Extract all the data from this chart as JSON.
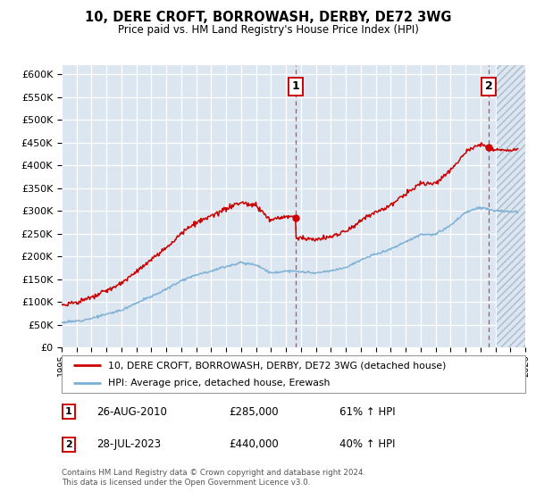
{
  "title": "10, DERE CROFT, BORROWASH, DERBY, DE72 3WG",
  "subtitle": "Price paid vs. HM Land Registry's House Price Index (HPI)",
  "legend_line1": "10, DERE CROFT, BORROWASH, DERBY, DE72 3WG (detached house)",
  "legend_line2": "HPI: Average price, detached house, Erewash",
  "annotation1_date": "26-AUG-2010",
  "annotation1_price": "£285,000",
  "annotation1_hpi": "61% ↑ HPI",
  "annotation2_date": "28-JUL-2023",
  "annotation2_price": "£440,000",
  "annotation2_hpi": "40% ↑ HPI",
  "footer": "Contains HM Land Registry data © Crown copyright and database right 2024.\nThis data is licensed under the Open Government Licence v3.0.",
  "ylim": [
    0,
    620000
  ],
  "yticks": [
    0,
    50000,
    100000,
    150000,
    200000,
    250000,
    300000,
    350000,
    400000,
    450000,
    500000,
    550000,
    600000
  ],
  "hpi_color": "#7bafd4",
  "price_color": "#cc0000",
  "sale1_x": 2010.65,
  "sale1_y": 285000,
  "sale2_x": 2023.57,
  "sale2_y": 440000,
  "plot_bg_color": "#dce6f1",
  "xmin": 1995,
  "xmax": 2026
}
